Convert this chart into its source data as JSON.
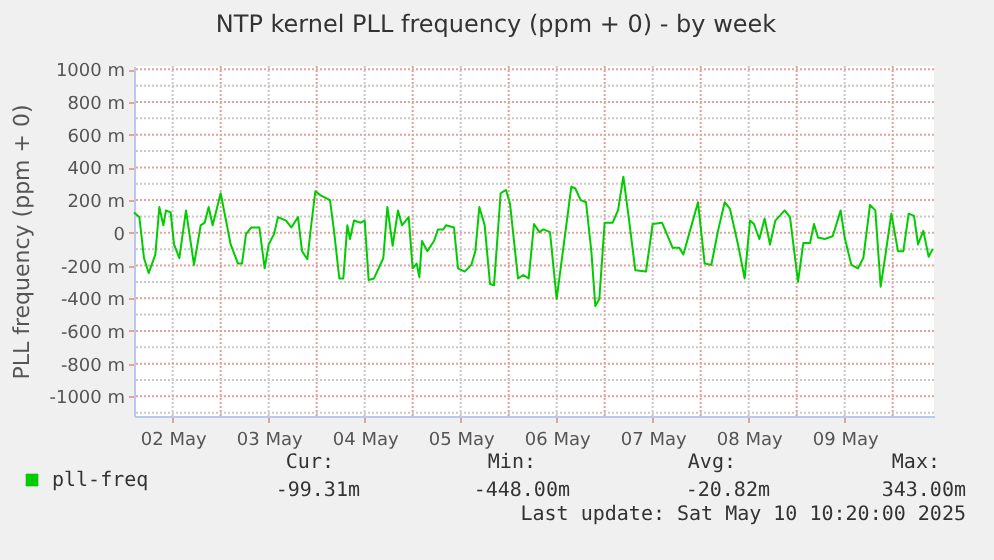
{
  "chart_data": {
    "type": "line",
    "title": "NTP kernel PLL frequency (ppm + 0) - by week",
    "ylabel": "PLL frequency (ppm + 0)",
    "x": [
      "2025-05-02T02:20",
      "2025-05-02T03:40",
      "2025-05-02T04:50",
      "2025-05-02T06:00",
      "2025-05-02T07:40",
      "2025-05-02T08:40",
      "2025-05-02T09:40",
      "2025-05-02T10:20",
      "2025-05-02T11:30",
      "2025-05-02T12:20",
      "2025-05-02T13:40",
      "2025-05-02T15:20",
      "2025-05-02T17:20",
      "2025-05-02T19:00",
      "2025-05-02T20:00",
      "2025-05-02T21:00",
      "2025-05-02T22:00",
      "2025-05-03T00:00",
      "2025-05-03T01:00",
      "2025-05-03T02:30",
      "2025-05-03T04:20",
      "2025-05-03T05:20",
      "2025-05-03T06:20",
      "2025-05-03T07:40",
      "2025-05-03T09:40",
      "2025-05-03T11:00",
      "2025-05-03T12:00",
      "2025-05-03T13:20",
      "2025-05-03T14:20",
      "2025-05-03T16:20",
      "2025-05-03T17:40",
      "2025-05-03T19:20",
      "2025-05-03T20:20",
      "2025-05-03T21:40",
      "2025-05-03T22:40",
      "2025-05-03T23:40",
      "2025-05-04T01:00",
      "2025-05-04T03:20",
      "2025-05-04T04:20",
      "2025-05-04T05:40",
      "2025-05-04T06:40",
      "2025-05-04T07:40",
      "2025-05-04T08:20",
      "2025-05-04T09:20",
      "2025-05-04T11:00",
      "2025-05-04T12:00",
      "2025-05-04T13:00",
      "2025-05-04T14:20",
      "2025-05-04T16:40",
      "2025-05-04T17:40",
      "2025-05-04T19:00",
      "2025-05-04T20:20",
      "2025-05-04T21:20",
      "2025-05-04T23:00",
      "2025-05-05T00:00",
      "2025-05-05T01:00",
      "2025-05-05T01:40",
      "2025-05-05T02:20",
      "2025-05-05T03:40",
      "2025-05-05T05:20",
      "2025-05-05T06:20",
      "2025-05-05T07:40",
      "2025-05-05T08:20",
      "2025-05-05T10:20",
      "2025-05-05T11:20",
      "2025-05-05T13:00",
      "2025-05-05T14:40",
      "2025-05-05T15:40",
      "2025-05-05T16:40",
      "2025-05-05T18:00",
      "2025-05-05T19:20",
      "2025-05-05T20:20",
      "2025-05-05T22:00",
      "2025-05-05T23:20",
      "2025-05-06T00:20",
      "2025-05-06T02:20",
      "2025-05-06T03:40",
      "2025-05-06T05:00",
      "2025-05-06T06:20",
      "2025-05-06T07:40",
      "2025-05-06T08:40",
      "2025-05-06T10:20",
      "2025-05-06T12:00",
      "2025-05-06T13:40",
      "2025-05-06T15:40",
      "2025-05-06T16:40",
      "2025-05-06T18:00",
      "2025-05-06T19:20",
      "2025-05-06T20:40",
      "2025-05-06T21:40",
      "2025-05-06T22:40",
      "2025-05-07T00:00",
      "2025-05-07T02:00",
      "2025-05-07T03:20",
      "2025-05-07T04:40",
      "2025-05-07T06:00",
      "2025-05-07T07:40",
      "2025-05-07T10:20",
      "2025-05-07T12:00",
      "2025-05-07T14:20",
      "2025-05-07T17:00",
      "2025-05-07T18:40",
      "2025-05-07T19:40",
      "2025-05-07T21:20",
      "2025-05-07T23:20",
      "2025-05-08T01:00",
      "2025-05-08T02:40",
      "2025-05-08T04:20",
      "2025-05-08T06:00",
      "2025-05-08T07:20",
      "2025-05-08T09:20",
      "2025-05-08T11:00",
      "2025-05-08T12:20",
      "2025-05-08T13:20",
      "2025-05-08T14:40",
      "2025-05-08T16:00",
      "2025-05-08T17:20",
      "2025-05-08T18:40",
      "2025-05-08T21:00",
      "2025-05-08T22:20",
      "2025-05-09T00:20",
      "2025-05-09T01:40",
      "2025-05-09T03:20",
      "2025-05-09T04:20",
      "2025-05-09T05:20",
      "2025-05-09T07:00",
      "2025-05-09T09:00",
      "2025-05-09T11:00",
      "2025-05-09T12:00",
      "2025-05-09T13:40",
      "2025-05-09T15:20",
      "2025-05-09T16:40",
      "2025-05-09T18:20",
      "2025-05-09T19:40",
      "2025-05-09T21:00",
      "2025-05-09T22:20",
      "2025-05-09T23:40",
      "2025-05-10T01:20",
      "2025-05-10T02:40",
      "2025-05-10T04:00",
      "2025-05-10T05:20",
      "2025-05-10T06:20",
      "2025-05-10T07:40",
      "2025-05-10T09:00",
      "2025-05-10T10:00"
    ],
    "series": [
      {
        "name": "pll-freq",
        "color": "#00cc00",
        "values": [
          125,
          96,
          -154,
          -246,
          -133,
          158,
          46,
          137,
          125,
          -71,
          -154,
          137,
          -196,
          46,
          62,
          158,
          46,
          242,
          117,
          -71,
          -188,
          -188,
          -8,
          33,
          33,
          -217,
          -71,
          -8,
          96,
          75,
          33,
          96,
          -112,
          -162,
          54,
          254,
          229,
          200,
          12,
          -279,
          -279,
          46,
          -38,
          75,
          62,
          75,
          -288,
          -279,
          -154,
          158,
          -79,
          137,
          46,
          96,
          -217,
          -188,
          -271,
          -50,
          -112,
          -50,
          21,
          21,
          46,
          33,
          -217,
          -237,
          -196,
          -112,
          158,
          46,
          -313,
          -321,
          242,
          262,
          179,
          -279,
          -258,
          -279,
          54,
          4,
          21,
          4,
          -404,
          -92,
          283,
          271,
          200,
          187,
          -112,
          -448,
          -404,
          62,
          62,
          137,
          343,
          96,
          -229,
          -237,
          54,
          62,
          -92,
          -92,
          -133,
          12,
          187,
          -188,
          -196,
          12,
          187,
          146,
          -71,
          -279,
          75,
          54,
          -38,
          87,
          -71,
          75,
          137,
          96,
          -300,
          -62,
          -62,
          54,
          -29,
          -38,
          -21,
          137,
          -29,
          -196,
          -217,
          -154,
          171,
          137,
          -329,
          -112,
          117,
          -112,
          -112,
          117,
          104,
          -71,
          12,
          -146,
          -99
        ]
      }
    ],
    "xlim": [
      "2025-05-02T02:20",
      "2025-05-10T10:20"
    ],
    "xticks": [
      {
        "value": "2025-05-02T12:00",
        "label": "02 May"
      },
      {
        "value": "2025-05-03T12:00",
        "label": "03 May"
      },
      {
        "value": "2025-05-04T12:00",
        "label": "04 May"
      },
      {
        "value": "2025-05-05T12:00",
        "label": "05 May"
      },
      {
        "value": "2025-05-06T12:00",
        "label": "06 May"
      },
      {
        "value": "2025-05-07T12:00",
        "label": "07 May"
      },
      {
        "value": "2025-05-08T12:00",
        "label": "08 May"
      },
      {
        "value": "2025-05-09T12:00",
        "label": "09 May"
      }
    ],
    "ylim": [
      -1120,
      1020
    ],
    "yticks": [
      {
        "value": -1000,
        "label": "-1000 m"
      },
      {
        "value": -800,
        "label": "-800 m"
      },
      {
        "value": -600,
        "label": "-600 m"
      },
      {
        "value": -400,
        "label": "-400 m"
      },
      {
        "value": -200,
        "label": "-200 m"
      },
      0,
      {
        "value": 200,
        "label": "200 m"
      },
      {
        "value": 400,
        "label": "400 m"
      },
      {
        "value": 600,
        "label": "600 m"
      },
      {
        "value": 800,
        "label": "800 m"
      },
      {
        "value": 1000,
        "label": "1000 m"
      }
    ],
    "grid": true,
    "legend": "bottom",
    "line_style": "solid",
    "annotations": [
      "Cur:",
      "-99.31m",
      "Min:",
      "-448.00m",
      "Avg:",
      "-20.82m",
      "Max:",
      "343.00m",
      "Last update: Sat May 10 10:20:00 2025"
    ]
  }
}
